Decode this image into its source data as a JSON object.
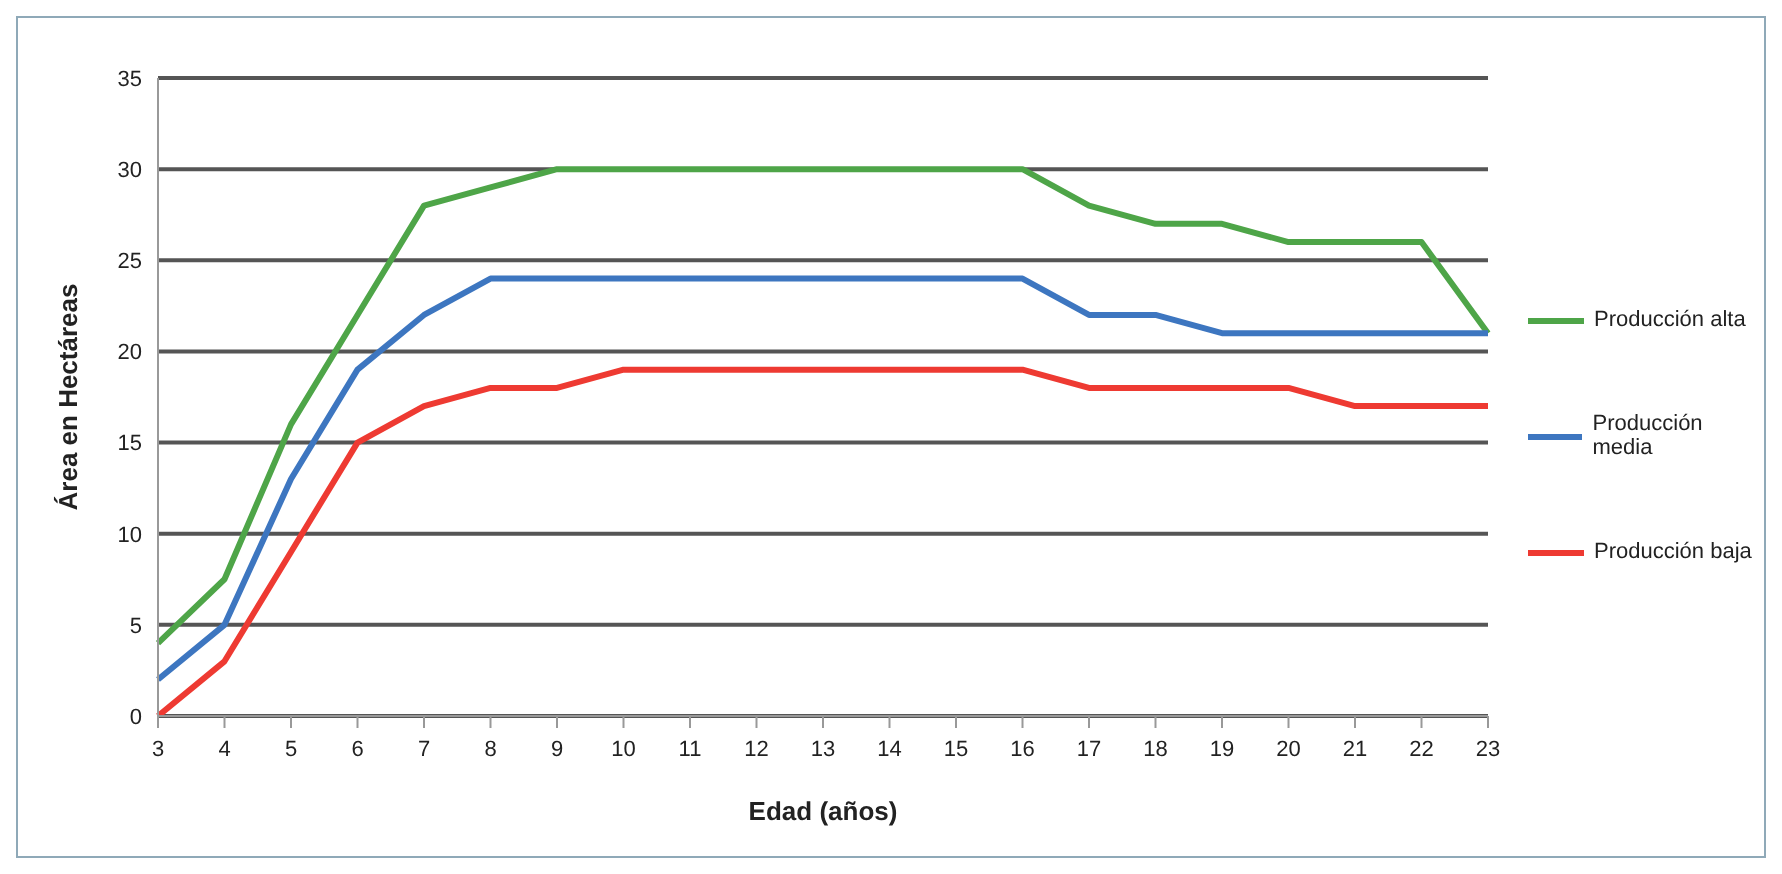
{
  "chart_data": {
    "type": "line",
    "xlabel": "Edad (años)",
    "ylabel": "Área en Hectáreas",
    "categories": [
      "3",
      "4",
      "5",
      "6",
      "7",
      "8",
      "9",
      "10",
      "11",
      "12",
      "13",
      "14",
      "15",
      "16",
      "17",
      "18",
      "19",
      "20",
      "21",
      "22",
      "23"
    ],
    "series": [
      {
        "name": "Producción alta",
        "color": "#4ea548",
        "values": [
          4,
          7.5,
          16,
          22,
          28,
          29,
          30,
          30,
          30,
          30,
          30,
          30,
          30,
          30,
          28,
          27,
          27,
          26,
          26,
          26,
          21
        ]
      },
      {
        "name": "Producción media",
        "color": "#3d76c0",
        "values": [
          2,
          5,
          13,
          19,
          22,
          24,
          24,
          24,
          24,
          24,
          24,
          24,
          24,
          24,
          22,
          22,
          21,
          21,
          21,
          21,
          21
        ]
      },
      {
        "name": "Producción baja",
        "color": "#ee3a32",
        "values": [
          0,
          3,
          9,
          15,
          17,
          18,
          18,
          19,
          19,
          19,
          19,
          19,
          19,
          19,
          18,
          18,
          18,
          18,
          17,
          17,
          17
        ]
      }
    ],
    "ylim": [
      0,
      35
    ],
    "yticks": [
      0,
      5,
      10,
      15,
      20,
      25,
      30,
      35
    ],
    "grid": "y",
    "legend": "right",
    "marker": "none",
    "line_style": "solid"
  }
}
